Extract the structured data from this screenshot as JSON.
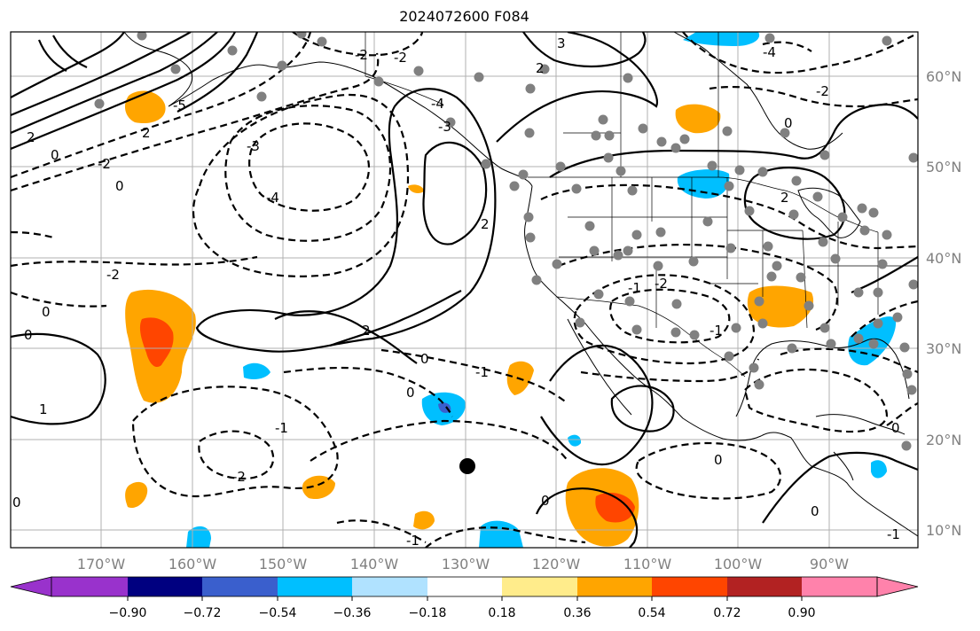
{
  "title": "2024072600 F084",
  "longitude_labels": [
    "170°W",
    "160°W",
    "150°W",
    "140°W",
    "130°W",
    "120°W",
    "110°W",
    "100°W",
    "90°W"
  ],
  "latitude_labels": [
    "60°N",
    "50°N",
    "40°N",
    "30°N",
    "20°N",
    "10°N"
  ],
  "colorbar": {
    "labels": [
      "−0.90",
      "−0.72",
      "−0.54",
      "−0.36",
      "−0.18",
      "0.18",
      "0.36",
      "0.54",
      "0.72",
      "0.90"
    ],
    "colors": [
      "#9932cc",
      "#000080",
      "#3a5fcd",
      "#00bfff",
      "#b0e2ff",
      "#ffffff",
      "#ffec8b",
      "#ffa500",
      "#ff4500",
      "#b22222",
      "#ff82ab"
    ]
  },
  "contour_labels": {
    "c1": "2",
    "c2": "0",
    "c3": "-2",
    "c4": "-3",
    "c5": "-4",
    "c6": "2",
    "c7": "0",
    "c8": "-2",
    "c9": "0",
    "c10": "0",
    "c11": "1",
    "c12": "-1",
    "c13": "-2",
    "c14": "2",
    "c15": "0",
    "c16": "-1",
    "c17": "-1",
    "c18": "0",
    "c19": "0",
    "c20": "-2",
    "c21": "2",
    "c22": "-2",
    "c23": "-3",
    "c24": "3",
    "c25": "-4",
    "c26": "2",
    "c27": "0",
    "c28": "-2",
    "c29": "2",
    "c30": "0",
    "c31": "0",
    "c32": "0",
    "c33": "-1",
    "c34": "-4",
    "c35": "-5",
    "c36": "-1",
    "c37": "-2",
    "c38": "-1",
    "c39": "0"
  },
  "colors": {
    "grid": "#b0b0b0",
    "tick_label": "#808080",
    "station_dot": "#808080"
  }
}
